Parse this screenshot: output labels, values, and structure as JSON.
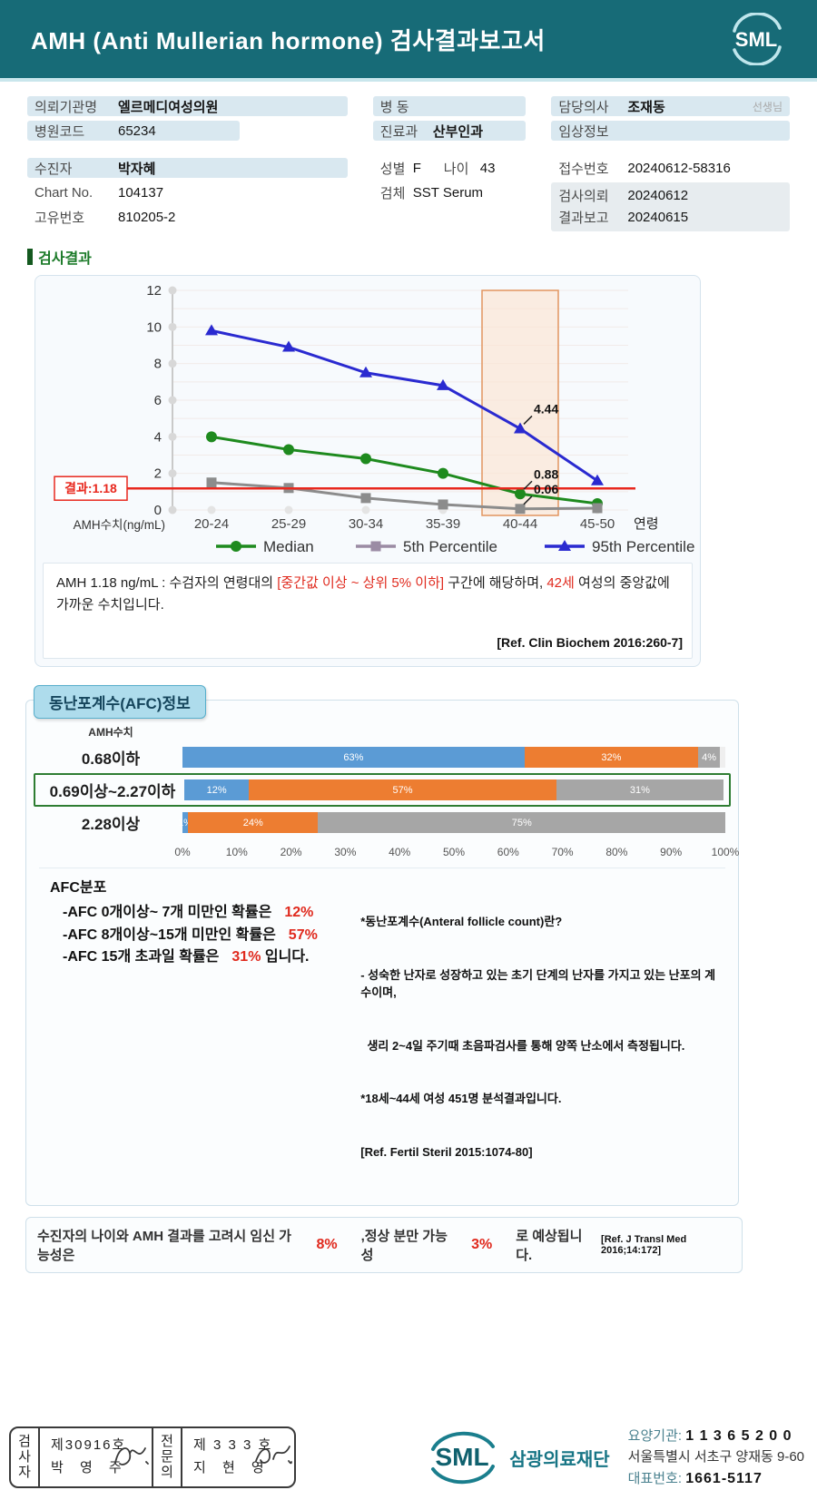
{
  "header": {
    "title": "AMH (Anti Mullerian hormone) 검사결과보고서",
    "logo_text": "SML"
  },
  "info": {
    "left": [
      {
        "label": "의뢰기관명",
        "value": "엘르메디여성의원"
      },
      {
        "label": "병원코드",
        "value": "65234"
      },
      {
        "label": "수진자",
        "value": "박자혜"
      },
      {
        "label": "Chart No.",
        "value": "104137"
      },
      {
        "label": "고유번호",
        "value": "810205-2"
      }
    ],
    "middle": [
      {
        "label": "병 동",
        "value": ""
      },
      {
        "label": "진료과",
        "value": "산부인과"
      },
      {
        "label": "성별",
        "value": "F"
      },
      {
        "label": "나이",
        "value": "43"
      },
      {
        "label": "검체",
        "value": "SST Serum"
      }
    ],
    "right": [
      {
        "label": "담당의사",
        "value": "조재동",
        "suffix": "선생님"
      },
      {
        "label": "임상정보",
        "value": ""
      },
      {
        "label": "접수번호",
        "value": "20240612-58316"
      },
      {
        "label": "검사의뢰",
        "value": "20240612"
      },
      {
        "label": "결과보고",
        "value": "20240615"
      }
    ]
  },
  "section_title": "검사결과",
  "chart_data": [
    {
      "type": "line",
      "x_categories": [
        "20-24",
        "25-29",
        "30-34",
        "35-39",
        "40-44",
        "45-50"
      ],
      "x_axis_suffix": "연령",
      "y_label": "AMH수치(ng/mL)",
      "y_ticks": [
        0,
        2,
        4,
        6,
        8,
        10,
        12
      ],
      "ylim": [
        0,
        12
      ],
      "grid": true,
      "legend_position": "bottom",
      "series": [
        {
          "name": "Median",
          "marker": "circle",
          "color": "#1e8a1e",
          "values": [
            4.0,
            3.3,
            2.8,
            2.0,
            0.88,
            0.35
          ]
        },
        {
          "name": "5th Percentile",
          "marker": "square",
          "color": "#8c8c8c",
          "legend_color": "#9b8ba4",
          "values": [
            1.5,
            1.2,
            0.65,
            0.3,
            0.06,
            0.1
          ]
        },
        {
          "name": "95th Percentile",
          "marker": "triangle",
          "color": "#2a2ad0",
          "values": [
            9.8,
            8.9,
            7.5,
            6.8,
            4.44,
            1.6
          ]
        }
      ],
      "annotations": [
        {
          "series": "95th Percentile",
          "x": "40-44",
          "text": "4.44"
        },
        {
          "series": "Median",
          "x": "40-44",
          "text": "0.88"
        },
        {
          "series": "5th Percentile",
          "x": "40-44",
          "text": "0.06"
        }
      ],
      "result_line": {
        "value": 1.18,
        "label": "결과:1.18",
        "color": "#e8281e"
      },
      "highlight_band": {
        "category": "40-44",
        "fill": "#fbe3d0",
        "border": "#e2955f"
      }
    },
    {
      "type": "bar",
      "orientation": "horizontal-stacked",
      "title": "동난포계수(AFC)정보",
      "y_axis_title": "AMH수치",
      "categories": [
        "0.68이하",
        "0.69이상~2.27이하",
        "2.28이상"
      ],
      "series": [
        {
          "name": "AFC 0~7개 미만",
          "color": "#5b9bd5",
          "values": [
            63,
            12,
            1
          ]
        },
        {
          "name": "AFC 8~15개 미만",
          "color": "#ed7d31",
          "values": [
            32,
            57,
            24
          ]
        },
        {
          "name": "AFC 15개 초과",
          "color": "#a6a6a6",
          "values": [
            4,
            31,
            75
          ]
        }
      ],
      "x_ticks": [
        "0%",
        "10%",
        "20%",
        "30%",
        "40%",
        "50%",
        "60%",
        "70%",
        "80%",
        "90%",
        "100%"
      ],
      "xlim": [
        0,
        100
      ],
      "highlighted_category": "0.69이상~2.27이하"
    }
  ],
  "comment": {
    "pre": "AMH  1.18 ng/mL : 수검자의 연령대의 ",
    "range": "[중간값 이상 ~ 상위 5% 이하]",
    "mid": " 구간에 해당하며, ",
    "age": "42세",
    "post": " 여성의 중앙값에 가까운 수치입니다.",
    "ref": "[Ref. Clin Biochem 2016:260-7]"
  },
  "afc": {
    "badge": "동난포계수(AFC)정보",
    "y_label": "AMH수치",
    "dist_title": "AFC분포",
    "lines": [
      {
        "pre": "-AFC 0개이상~ 7개 미만인 확률은",
        "pct": "12%",
        "post": ""
      },
      {
        "pre": "-AFC 8개이상~15개 미만인 확률은",
        "pct": "57%",
        "post": ""
      },
      {
        "pre": "-AFC 15개 초과일 확률은",
        "pct": "31%",
        "post": "입니다."
      }
    ],
    "note_title": "*동난포계수(Anteral follicle count)란?",
    "note_lines": [
      "- 성숙한 난자로 성장하고 있는 초기 단계의 난자를 가지고 있는 난포의 계수이며,",
      "  생리 2~4일 주기때 초음파검사를 통해 양쪽 난소에서 측정됩니다.",
      "*18세~44세 여성 451명 분석결과입니다.",
      "[Ref. Fertil Steril 2015:1074-80]"
    ]
  },
  "pregnancy": {
    "pre": "수진자의  나이와 AMH 결과를 고려시 임신 가능성은",
    "pct1": "8%",
    "mid": ",정상 분만 가능성",
    "pct2": "3%",
    "post": "로 예상됩니다.",
    "ref": "[Ref. J Transl Med 2016;14:172]"
  },
  "footer": {
    "stamps": [
      {
        "role": "검사자",
        "cert": "제30916호",
        "name": "박 영 주"
      },
      {
        "role": "전문의",
        "cert": "제 3 3 3 호",
        "name": "지 현 영"
      }
    ],
    "logo_text": "SML",
    "org": "삼광의료재단",
    "lines": [
      {
        "label": "요양기관:",
        "value": "1 1 3 6 5 2 0 0"
      },
      {
        "label": "",
        "value": "서울특별시 서초구 양재동 9-60"
      },
      {
        "label": "대표번호:",
        "value": "1661-5117"
      }
    ]
  }
}
